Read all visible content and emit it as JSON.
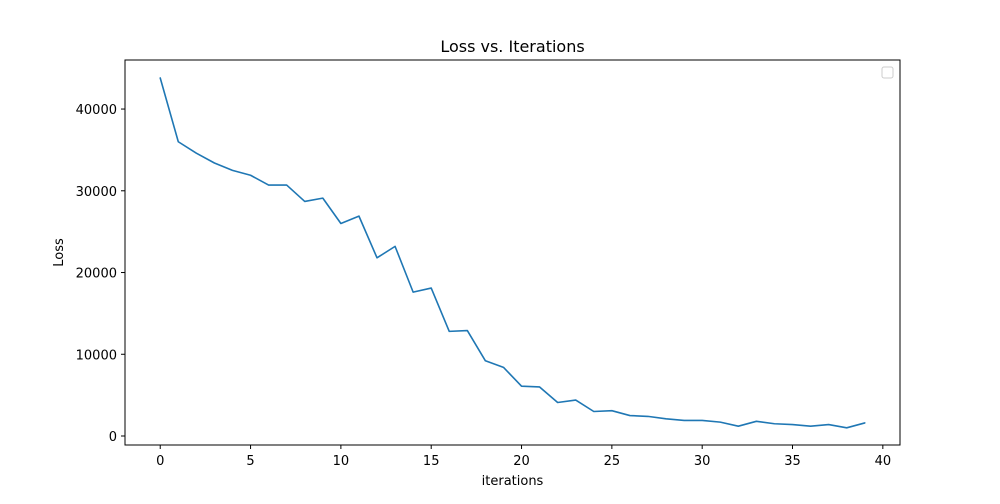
{
  "chart_data": {
    "type": "line",
    "title": "Loss vs. Iterations",
    "xlabel": "iterations",
    "ylabel": "Loss",
    "xlim": [
      -1.95,
      40.95
    ],
    "ylim": [
      -1100,
      46000
    ],
    "xticks": [
      0,
      5,
      10,
      15,
      20,
      25,
      30,
      35,
      40
    ],
    "xtick_labels": [
      "0",
      "5",
      "10",
      "15",
      "20",
      "25",
      "30",
      "35",
      "40"
    ],
    "yticks": [
      0,
      10000,
      20000,
      30000,
      40000
    ],
    "ytick_labels": [
      "0",
      "10000",
      "20000",
      "30000",
      "40000"
    ],
    "grid": false,
    "legend": {
      "placement": "top-right",
      "entries": []
    },
    "series": [
      {
        "color": "#1f77b4",
        "x": [
          0,
          1,
          2,
          3,
          4,
          5,
          6,
          7,
          8,
          9,
          10,
          11,
          12,
          13,
          14,
          15,
          16,
          17,
          18,
          19,
          20,
          21,
          22,
          23,
          24,
          25,
          26,
          27,
          28,
          29,
          30,
          31,
          32,
          33,
          34,
          35,
          36,
          37,
          38,
          39
        ],
        "values": [
          43800,
          36000,
          34600,
          33400,
          32500,
          31900,
          30700,
          30700,
          28700,
          29100,
          26000,
          26900,
          21800,
          23200,
          17600,
          18100,
          12800,
          12900,
          9200,
          8400,
          6100,
          6000,
          4100,
          4400,
          3000,
          3100,
          2500,
          2400,
          2100,
          1900,
          1900,
          1700,
          1200,
          1800,
          1500,
          1400,
          1200,
          1400,
          1000,
          1600
        ]
      }
    ]
  }
}
